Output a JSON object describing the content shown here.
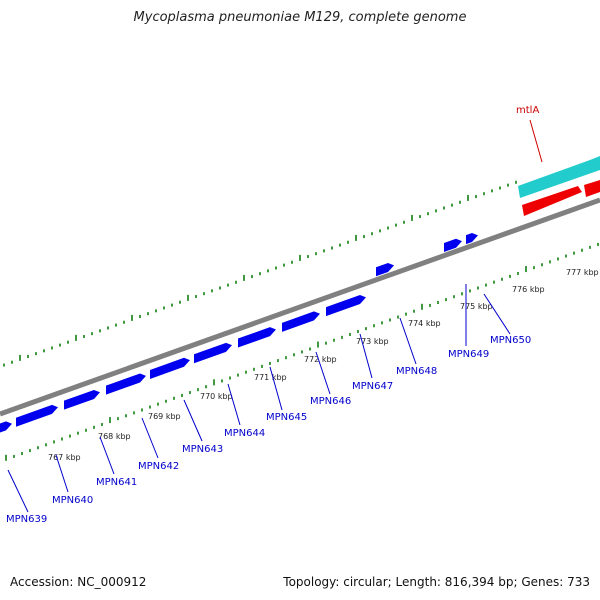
{
  "title": "Mycoplasma pneumoniae M129, complete genome",
  "footer": {
    "accession": "Accession: NC_000912",
    "topology": "Topology: circular; Length: 816,394 bp; Genes: 733"
  },
  "colors": {
    "backbone": "#808080",
    "forward_gene": "#0000ee",
    "ruler": "#007700",
    "label_blue": "#0000cc",
    "label_red": "#cc0000",
    "teal_feature": "#22cccc",
    "red_feature": "#ee0000"
  },
  "ruler_labels": [
    "767 kbp",
    "768 kbp",
    "769 kbp",
    "770 kbp",
    "771 kbp",
    "772 kbp",
    "773 kbp",
    "774 kbp",
    "775 kbp",
    "776 kbp",
    "777 kbp"
  ],
  "genes": [
    "MPN639",
    "MPN640",
    "MPN641",
    "MPN642",
    "MPN643",
    "MPN644",
    "MPN645",
    "MPN646",
    "MPN647",
    "MPN648",
    "MPN649",
    "MPN650"
  ],
  "features": {
    "red_label": "mtlA"
  }
}
